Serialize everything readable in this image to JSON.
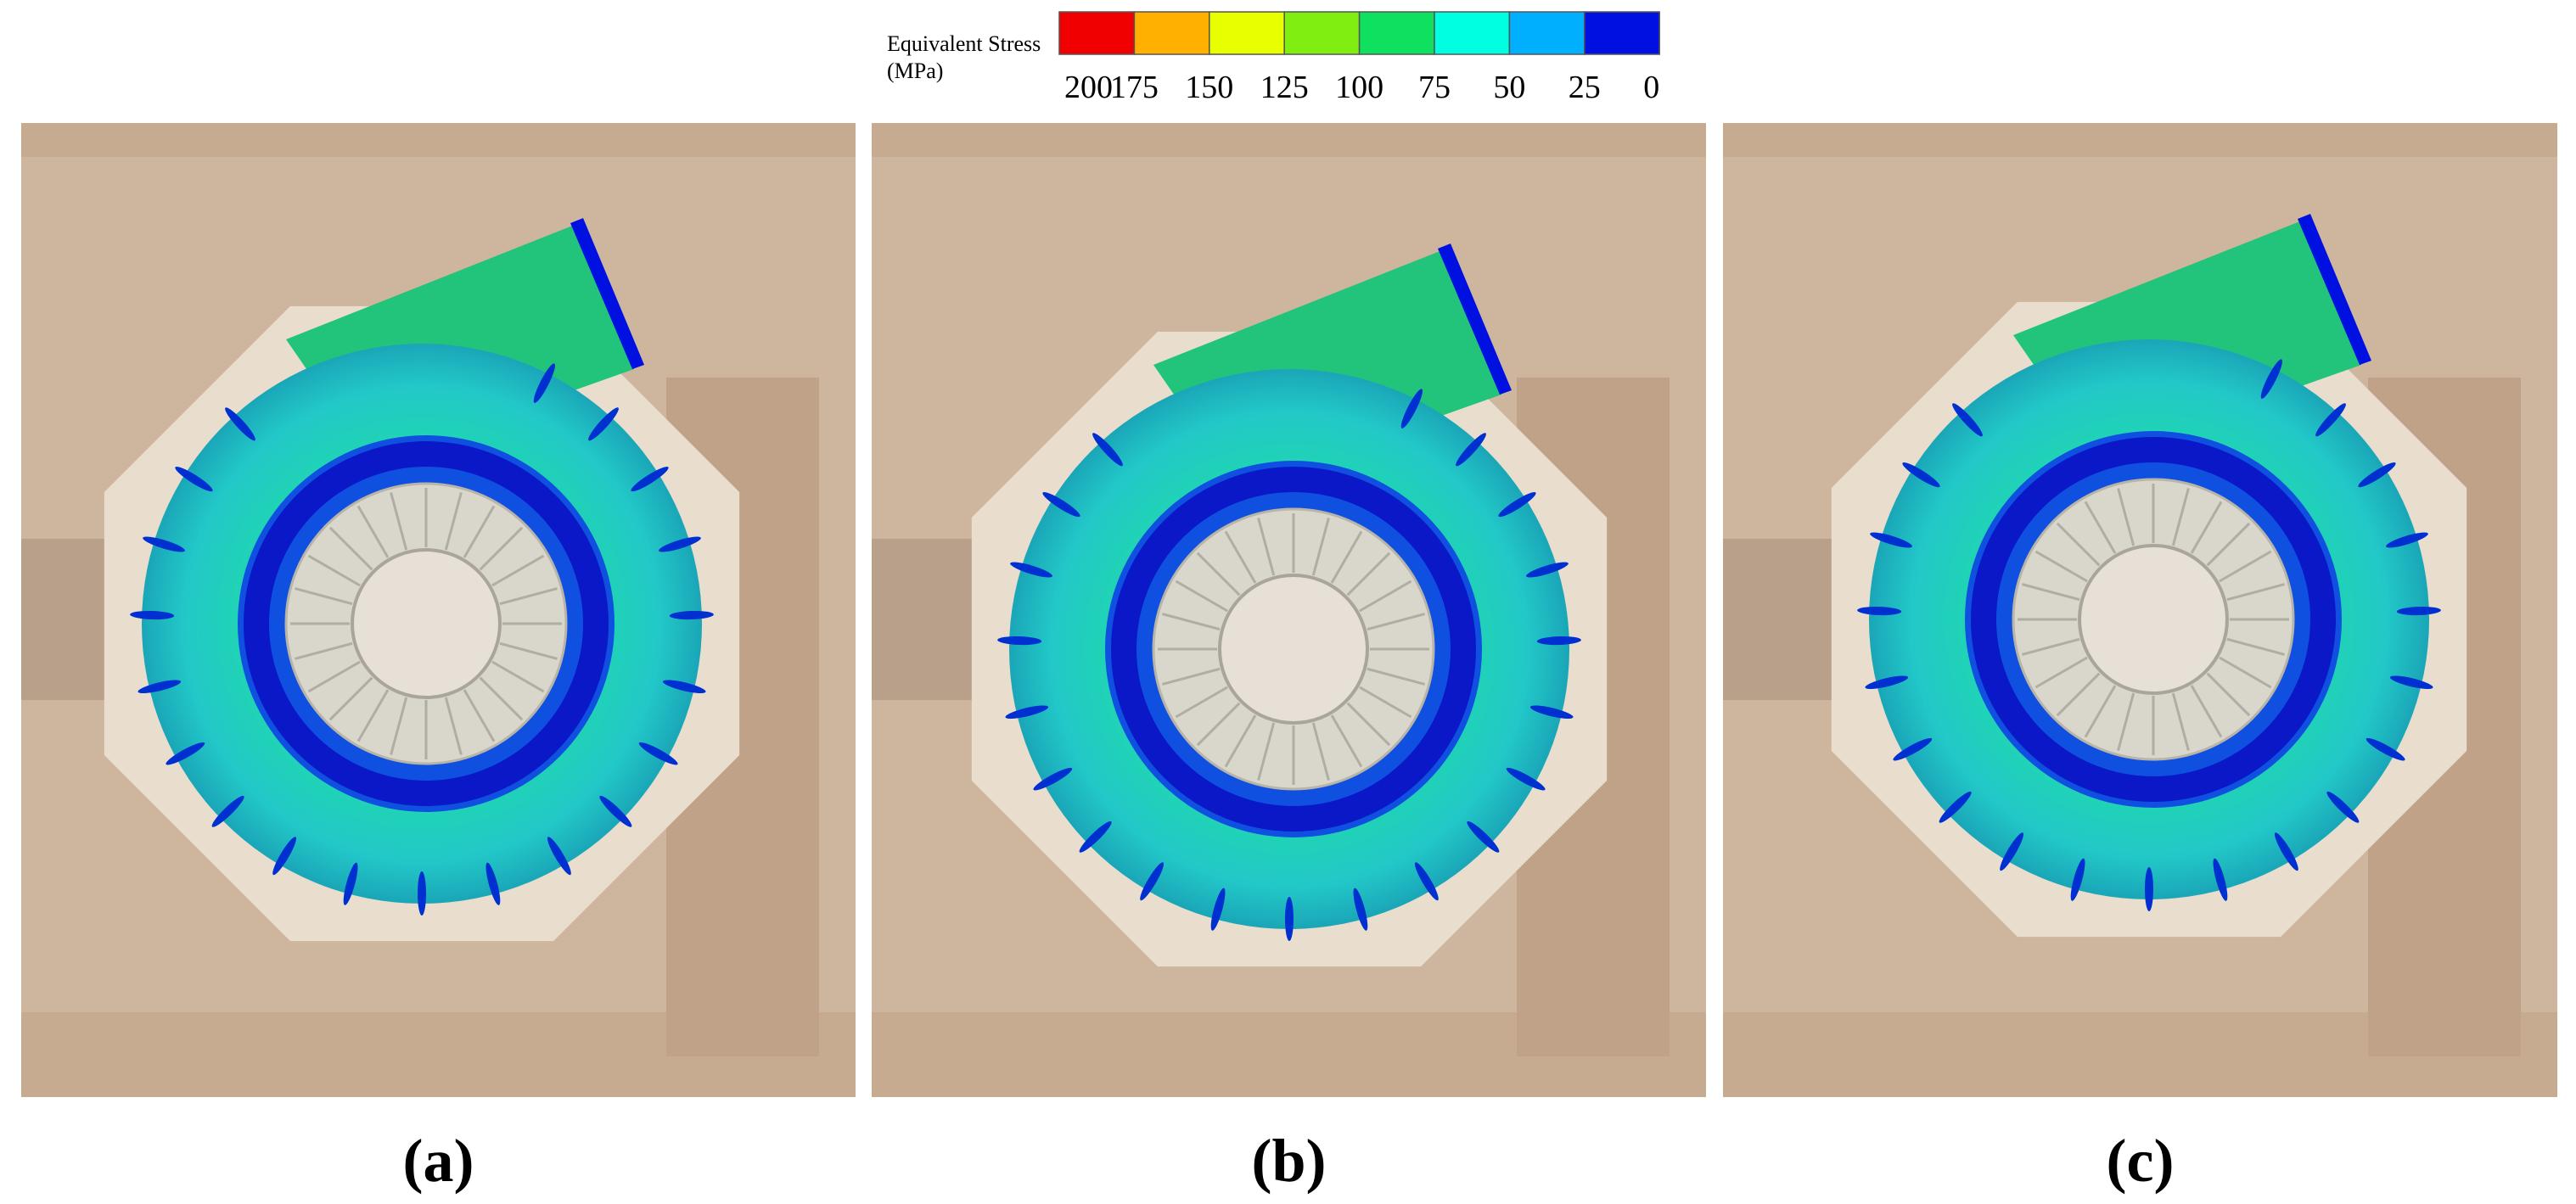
{
  "legend": {
    "title": "Equivalent Stress",
    "unit": "(MPa)",
    "colors": [
      "#f00000",
      "#ffb000",
      "#e8ff00",
      "#80ee10",
      "#10e060",
      "#00ffe0",
      "#00b0ff",
      "#0010e0"
    ],
    "labels": [
      "200",
      "175",
      "150",
      "125",
      "100",
      "75",
      "50",
      "25",
      "0"
    ]
  },
  "panels": [
    {
      "label": "(a)"
    },
    {
      "label": "(b)"
    },
    {
      "label": "(c)"
    }
  ]
}
